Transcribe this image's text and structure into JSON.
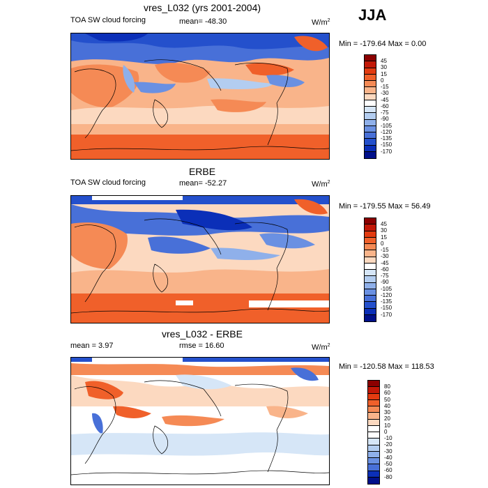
{
  "season": "JJA",
  "panels": [
    {
      "title": "vres_L032 (yrs 2001-2004)",
      "left_label": "TOA SW cloud forcing",
      "mean_label": "mean= -48.30",
      "units": "W/m",
      "units_sup": "2",
      "minmax": "Min = -179.64 Max =   0.00",
      "levels": [
        "45",
        "30",
        "15",
        "0",
        "-15",
        "-30",
        "-45",
        "-60",
        "-75",
        "-90",
        "-105",
        "-120",
        "-135",
        "-150",
        "-170"
      ],
      "colors": [
        "#8b0000",
        "#c21807",
        "#e33b10",
        "#f0602a",
        "#f58a55",
        "#f9b48a",
        "#fcd9c0",
        "#ffffff",
        "#d6e6f7",
        "#b3cdf0",
        "#8fb0ea",
        "#6a90e2",
        "#4870d8",
        "#2450cc",
        "#0b2fb8",
        "#00108a"
      ]
    },
    {
      "title": "ERBE",
      "left_label": "TOA SW cloud forcing",
      "mean_label": "mean= -52.27",
      "units": "W/m",
      "units_sup": "2",
      "minmax": "Min = -179.55 Max =  56.49",
      "levels": [
        "45",
        "30",
        "15",
        "0",
        "-15",
        "-30",
        "-45",
        "-60",
        "-75",
        "-90",
        "-105",
        "-120",
        "-135",
        "-150",
        "-170"
      ],
      "colors": [
        "#8b0000",
        "#c21807",
        "#e33b10",
        "#f0602a",
        "#f58a55",
        "#f9b48a",
        "#fcd9c0",
        "#ffffff",
        "#d6e6f7",
        "#b3cdf0",
        "#8fb0ea",
        "#6a90e2",
        "#4870d8",
        "#2450cc",
        "#0b2fb8",
        "#00108a"
      ]
    },
    {
      "title": "vres_L032 - ERBE",
      "left_label": "mean =   3.97",
      "mean_label": "rmse =  16.60",
      "units": "W/m",
      "units_sup": "2",
      "minmax": "Min = -120.58 Max = 118.53",
      "levels": [
        "80",
        "60",
        "50",
        "40",
        "30",
        "20",
        "10",
        "0",
        "-10",
        "-20",
        "-30",
        "-40",
        "-50",
        "-60",
        "-80"
      ],
      "colors": [
        "#8b0000",
        "#c21807",
        "#e33b10",
        "#f0602a",
        "#f58a55",
        "#f9b48a",
        "#fcd9c0",
        "#ffffff",
        "#ffffff",
        "#d6e6f7",
        "#b3cdf0",
        "#8fb0ea",
        "#6a90e2",
        "#4870d8",
        "#0b2fb8",
        "#00108a"
      ]
    }
  ]
}
